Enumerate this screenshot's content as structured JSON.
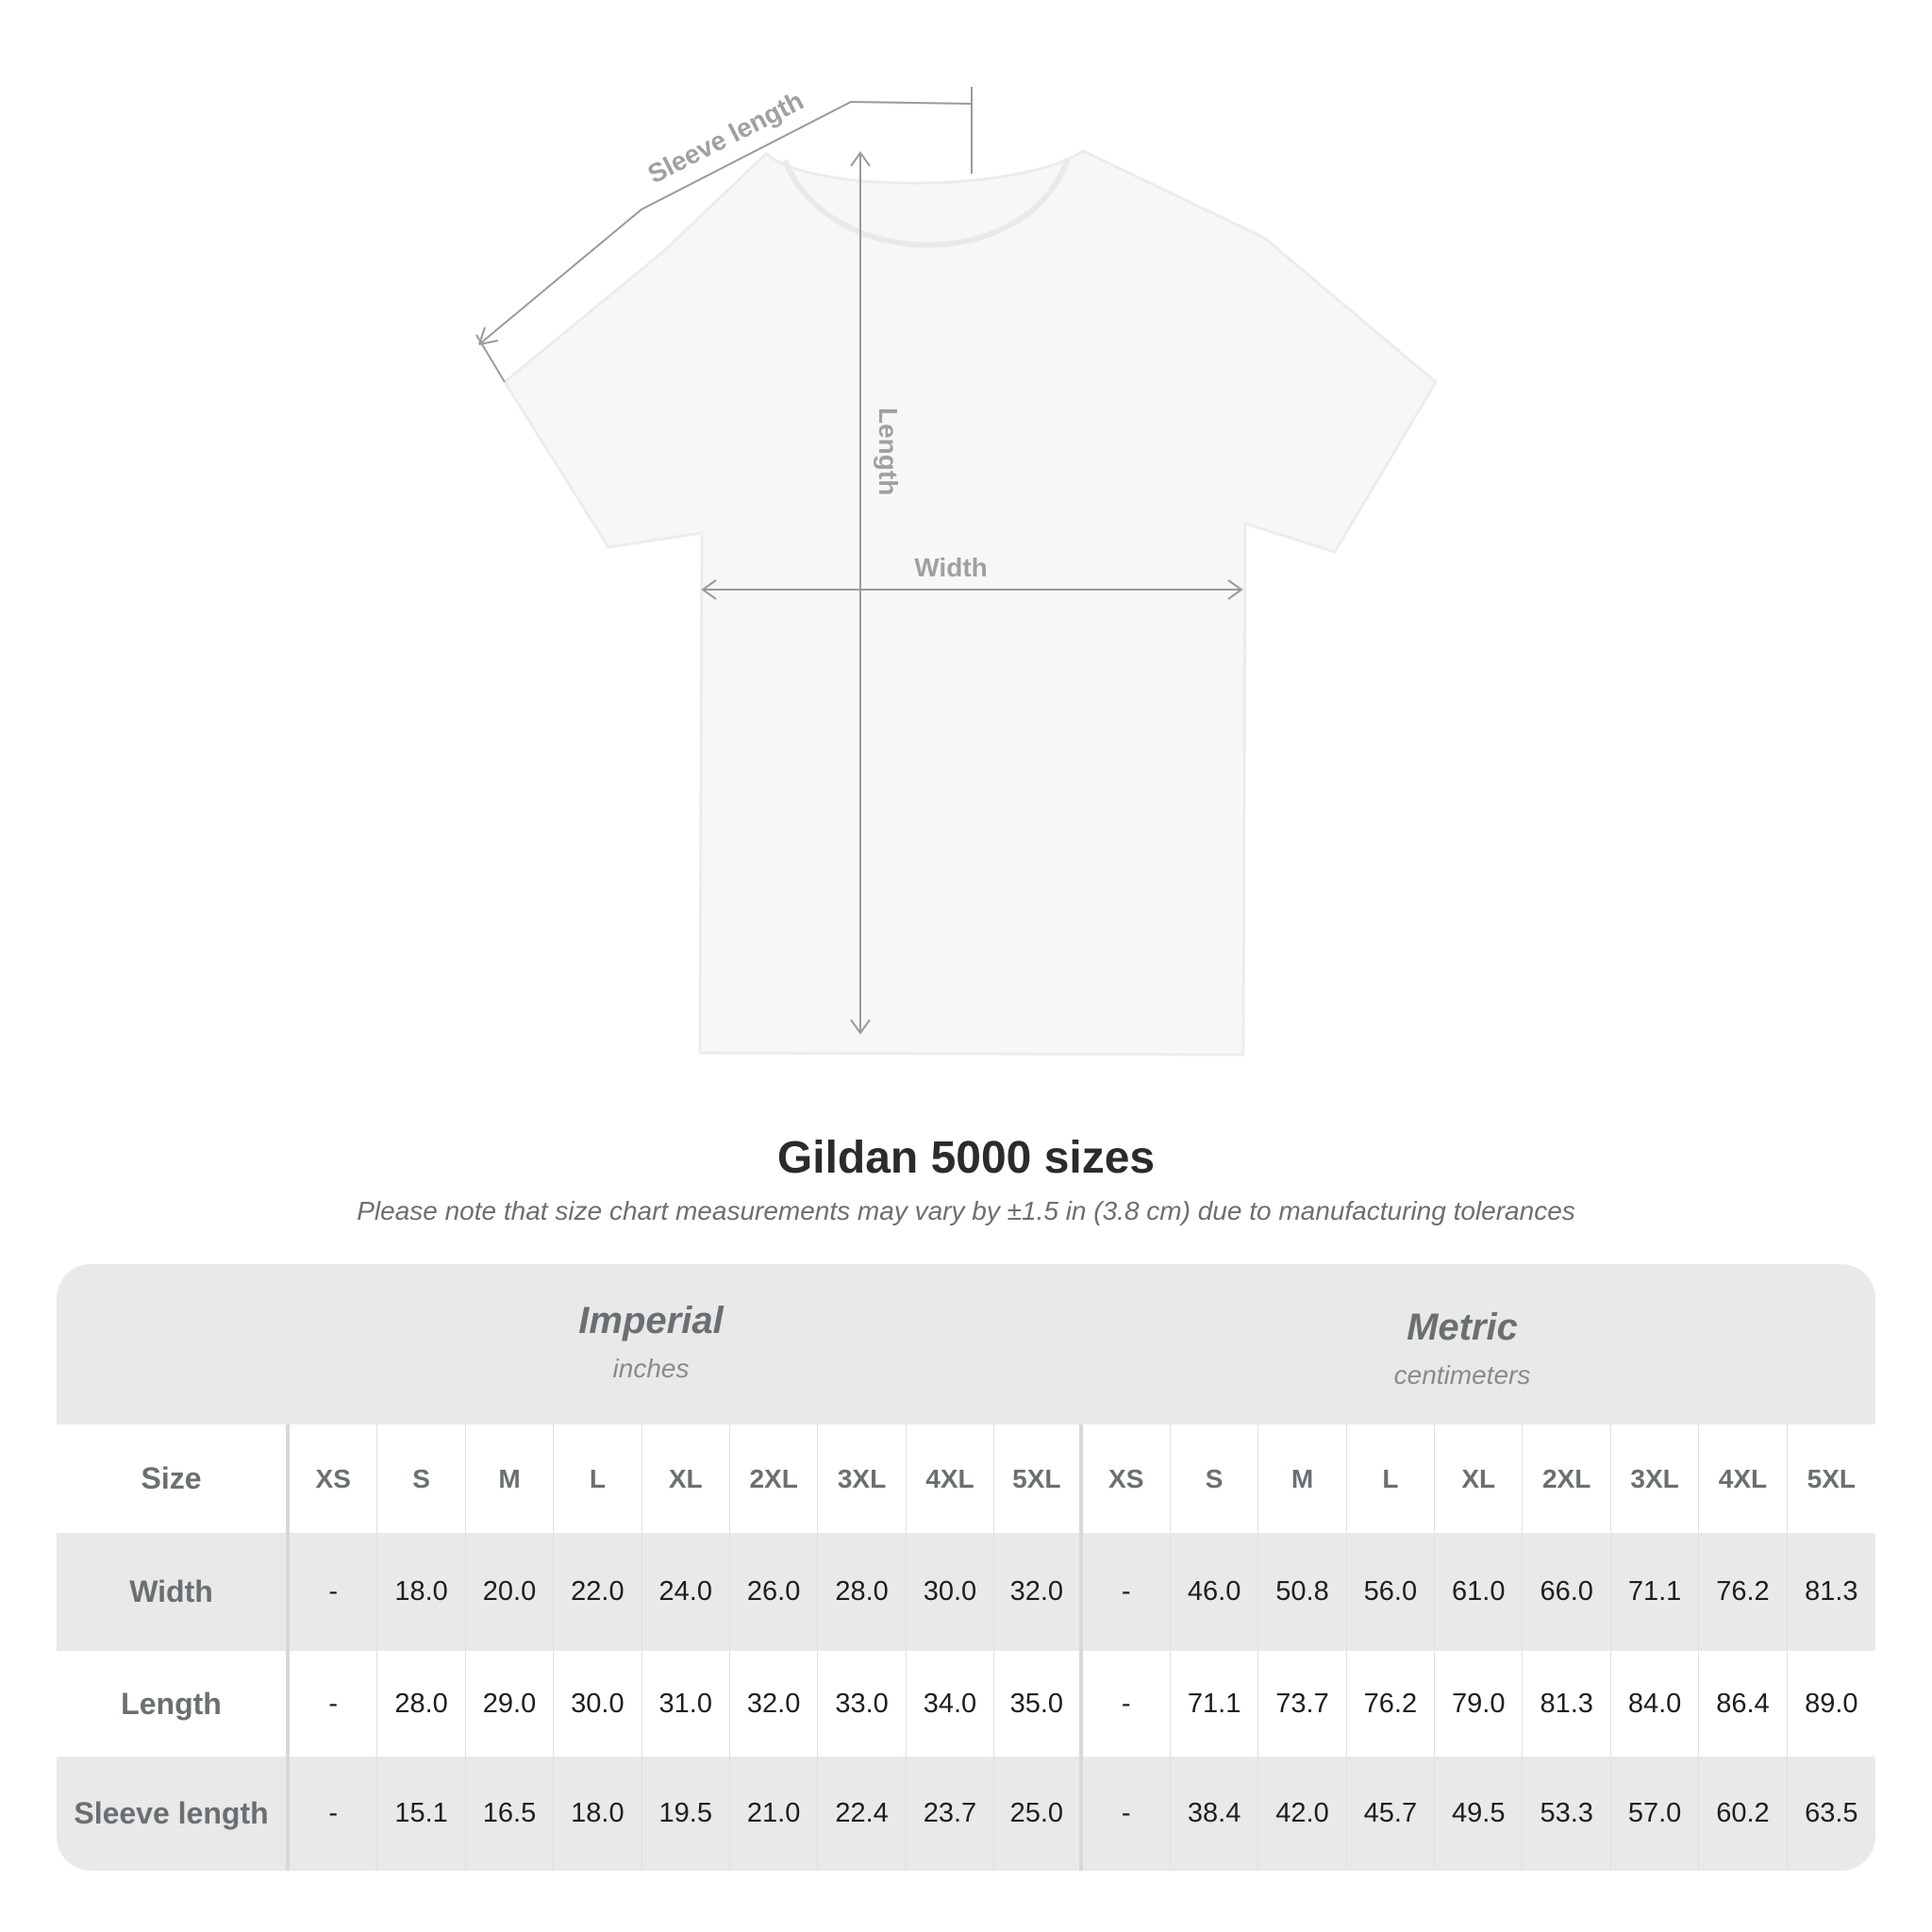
{
  "diagram": {
    "labels": {
      "sleeve": "Sleeve length",
      "length": "Length",
      "width": "Width"
    },
    "colors": {
      "shirt": "#f7f7f7",
      "measure_line": "#9a9a9a",
      "label": "#a0a0a0"
    }
  },
  "title": "Gildan 5000 sizes",
  "subtitle": "Please note that size chart measurements may vary by ±1.5 in (3.8 cm) due to manufacturing tolerances",
  "table": {
    "imperial": {
      "name": "Imperial",
      "unit": "inches"
    },
    "metric": {
      "name": "Metric",
      "unit": "centimeters"
    },
    "size_label": "Size",
    "sizes": [
      "XS",
      "S",
      "M",
      "L",
      "XL",
      "2XL",
      "3XL",
      "4XL",
      "5XL"
    ],
    "rows": [
      {
        "label": "Width",
        "imperial": [
          "-",
          "18.0",
          "20.0",
          "22.0",
          "24.0",
          "26.0",
          "28.0",
          "30.0",
          "32.0"
        ],
        "metric": [
          "-",
          "46.0",
          "50.8",
          "56.0",
          "61.0",
          "66.0",
          "71.1",
          "76.2",
          "81.3"
        ]
      },
      {
        "label": "Length",
        "imperial": [
          "-",
          "28.0",
          "29.0",
          "30.0",
          "31.0",
          "32.0",
          "33.0",
          "34.0",
          "35.0"
        ],
        "metric": [
          "-",
          "71.1",
          "73.7",
          "76.2",
          "79.0",
          "81.3",
          "84.0",
          "86.4",
          "89.0"
        ]
      },
      {
        "label": "Sleeve length",
        "imperial": [
          "-",
          "15.1",
          "16.5",
          "18.0",
          "19.5",
          "21.0",
          "22.4",
          "23.7",
          "25.0"
        ],
        "metric": [
          "-",
          "38.4",
          "42.0",
          "45.7",
          "49.5",
          "53.3",
          "57.0",
          "60.2",
          "63.5"
        ]
      }
    ],
    "colors": {
      "band": "#e9e9e9",
      "header_text": "#6a6f72",
      "value_text": "#1e1e1e"
    }
  }
}
